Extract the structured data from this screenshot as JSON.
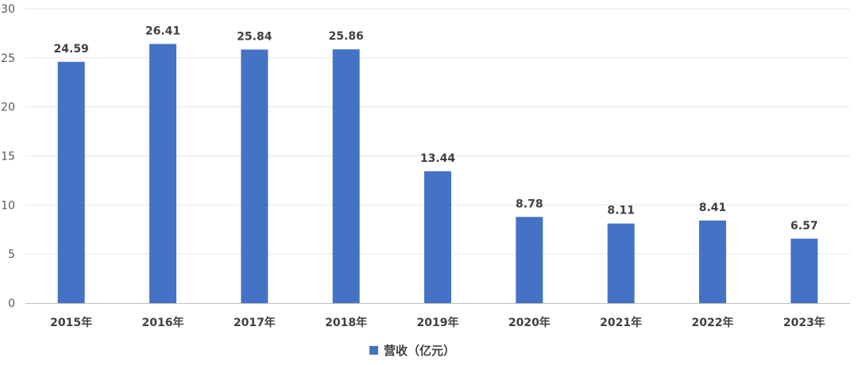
{
  "chart_data": {
    "type": "bar",
    "title": "",
    "xlabel": "",
    "ylabel": "",
    "categories": [
      "2015年",
      "2016年",
      "2017年",
      "2018年",
      "2019年",
      "2020年",
      "2021年",
      "2022年",
      "2023年"
    ],
    "series": [
      {
        "name": "营收（亿元）",
        "color": "#4472C4",
        "values": [
          24.59,
          26.41,
          25.84,
          25.86,
          13.44,
          8.78,
          8.11,
          8.41,
          6.57
        ]
      }
    ],
    "data_labels": [
      "24.59",
      "26.41",
      "25.84",
      "25.86",
      "13.44",
      "8.78",
      "8.11",
      "8.41",
      "6.57"
    ],
    "ylim": [
      0,
      30
    ],
    "yticks": [
      0,
      5,
      10,
      15,
      20,
      25,
      30
    ],
    "ytick_labels": [
      "0",
      "5",
      "10",
      "15",
      "20",
      "25",
      "30"
    ],
    "grid": true,
    "legend_position": "bottom"
  }
}
